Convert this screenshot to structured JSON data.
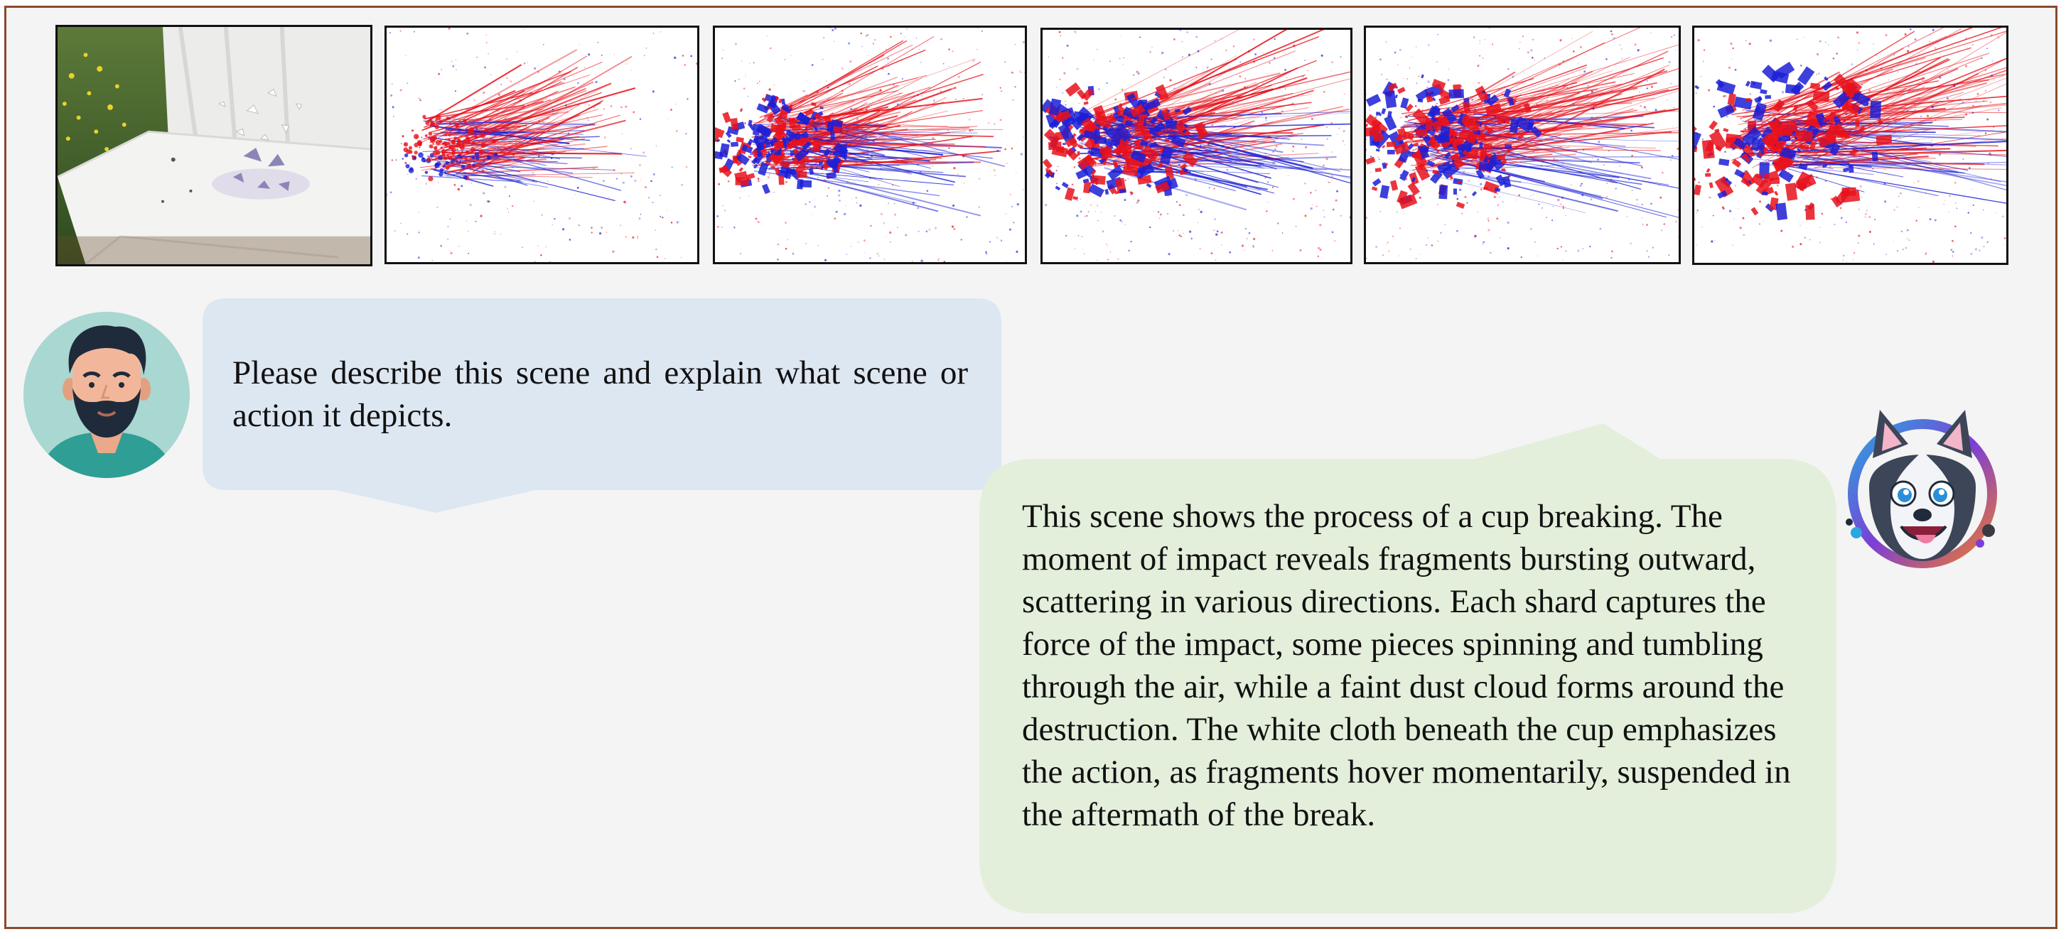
{
  "conversation": {
    "user_message": "Please describe this scene and explain what scene or action it depicts.",
    "assistant_message": "This scene shows the process of a cup breaking. The moment of impact reveals fragments bursting outward, scattering in various directions. Each shard captures the force of the impact, some pieces spinning and tumbling through the air, while a faint dust cloud forms around the destruction. The white cloth beneath the cup emphasizes the action, as fragments hover momentarily, suspended in the aftermath of the break."
  },
  "colors": {
    "frame_border": "#8b4a2b",
    "user_bubble": "#dde7f2",
    "assistant_bubble": "#e3efdb",
    "event_positive": "#e8121c",
    "event_negative": "#1b1fd6"
  },
  "frames": [
    {
      "type": "photo",
      "icon": "breaking-cup-photo"
    },
    {
      "type": "event",
      "spread": 0.2,
      "intensity": 0.7
    },
    {
      "type": "event",
      "spread": 0.4,
      "intensity": 0.85
    },
    {
      "type": "event",
      "spread": 0.65,
      "intensity": 0.95
    },
    {
      "type": "event",
      "spread": 0.75,
      "intensity": 0.95
    },
    {
      "type": "event",
      "spread": 0.9,
      "intensity": 0.9
    }
  ],
  "avatars": {
    "user": "bearded-man-avatar",
    "assistant": "husky-mascot-avatar"
  }
}
